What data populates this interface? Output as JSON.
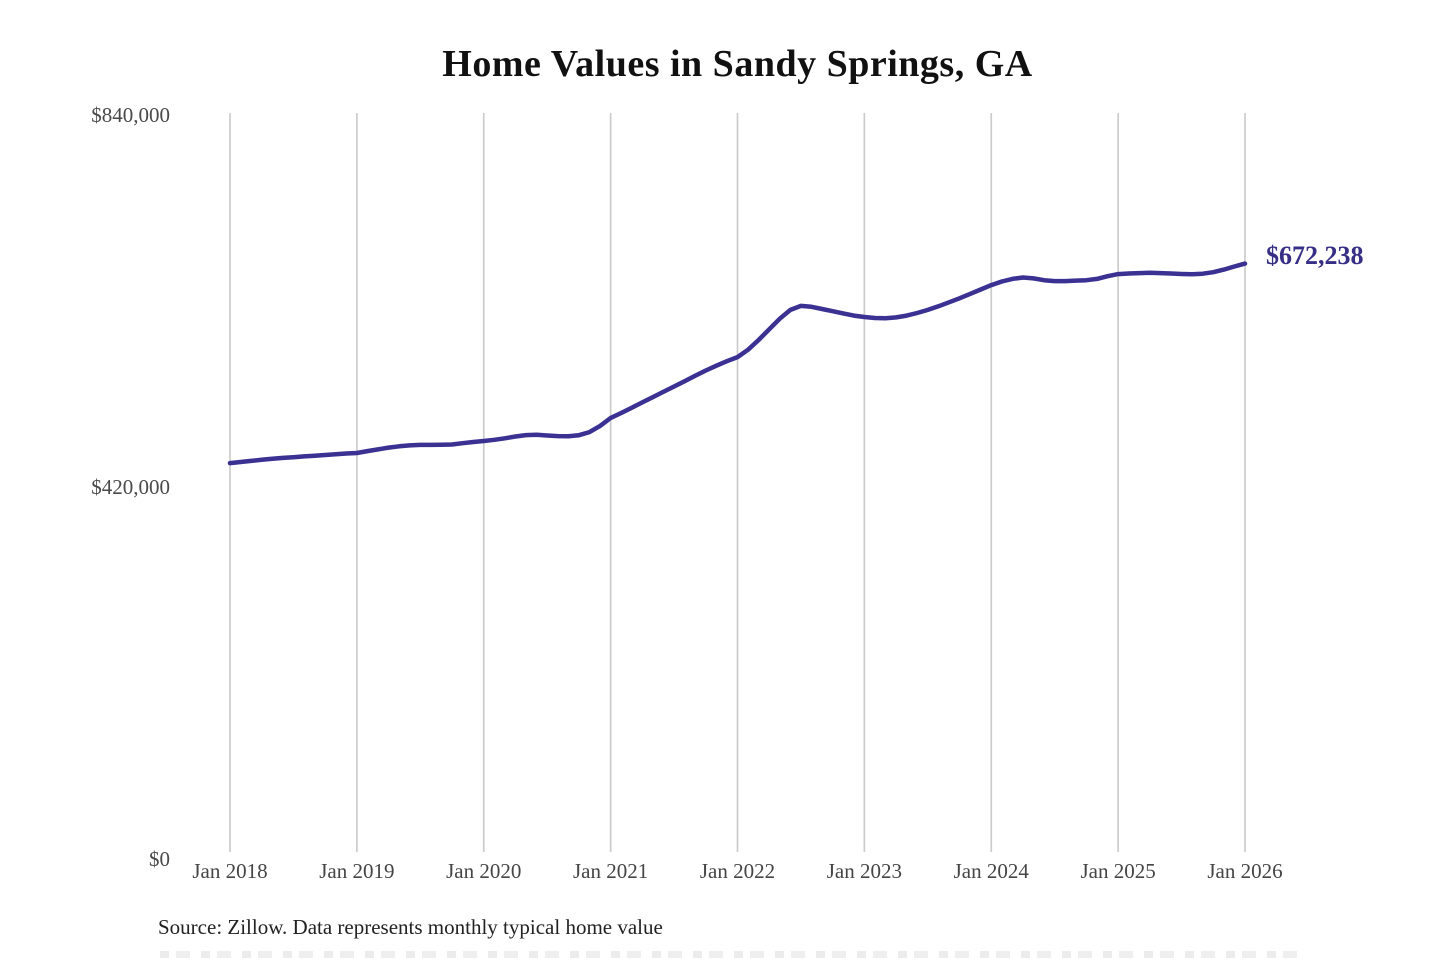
{
  "page": {
    "title": "Home Values in Sandy Springs, GA",
    "source_note": "Source: Zillow. Data represents monthly typical home value"
  },
  "chart_data": {
    "type": "line",
    "title": "Home Values in Sandy Springs, GA",
    "series_name": "Monthly typical home value",
    "x_start": "2018-01",
    "x_end": "2026-01",
    "frequency": "monthly",
    "values": [
      447000,
      448200,
      449500,
      450700,
      451800,
      452800,
      453700,
      454500,
      455300,
      456100,
      457000,
      457800,
      458400,
      460500,
      462500,
      464500,
      466000,
      467000,
      467500,
      467500,
      467600,
      468000,
      469500,
      470800,
      471900,
      473300,
      475000,
      477000,
      478600,
      478900,
      478200,
      477500,
      477400,
      478500,
      482000,
      489000,
      497900,
      503500,
      509500,
      515500,
      521500,
      527500,
      533500,
      539500,
      545500,
      551500,
      557000,
      562000,
      566700,
      575000,
      586000,
      598000,
      610000,
      620000,
      624500,
      623500,
      621000,
      618500,
      616000,
      613500,
      611900,
      610800,
      610500,
      611500,
      613500,
      616500,
      620000,
      624000,
      628500,
      633000,
      638000,
      643000,
      647900,
      652000,
      655000,
      656500,
      655500,
      653500,
      652500,
      652500,
      653000,
      653500,
      655000,
      658000,
      660400,
      661000,
      661500,
      661800,
      661500,
      661000,
      660500,
      660200,
      660800,
      662500,
      665500,
      669000,
      672238
    ],
    "x_tick_labels": [
      "Jan 2018",
      "Jan 2019",
      "Jan 2020",
      "Jan 2021",
      "Jan 2022",
      "Jan 2023",
      "Jan 2024",
      "Jan 2025",
      "Jan 2026"
    ],
    "y_ticks": [
      {
        "value": 0,
        "label": "$0"
      },
      {
        "value": 420000,
        "label": "$420,000"
      },
      {
        "value": 840000,
        "label": "$840,000"
      }
    ],
    "ylim": [
      0,
      840000
    ],
    "grid": "vertical-only",
    "legend": "none",
    "end_label": "$672,238",
    "final_value": 672238,
    "line_color": "#3b3193",
    "end_label_color": "#372f85",
    "grid_color": "#cccccc",
    "axis_label_color": "#4a4a4a"
  }
}
